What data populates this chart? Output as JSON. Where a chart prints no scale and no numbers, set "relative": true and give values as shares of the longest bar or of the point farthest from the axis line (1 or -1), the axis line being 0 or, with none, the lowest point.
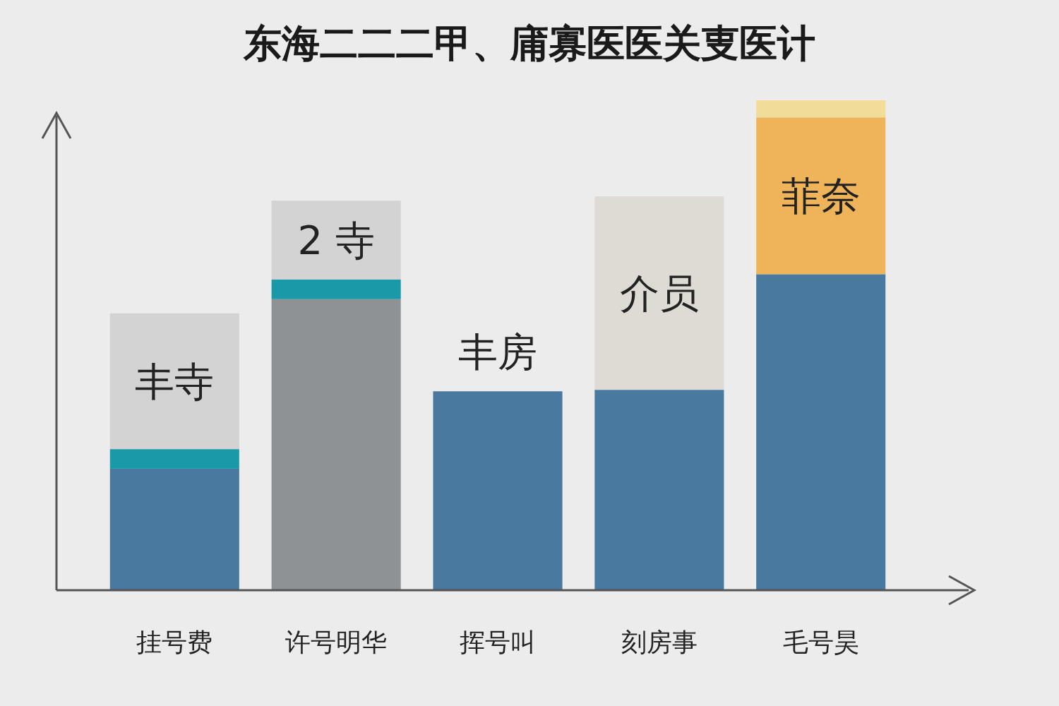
{
  "chart_data": {
    "type": "bar",
    "title": "东海二二二甲、庯寡医医关叓医计",
    "relative": true,
    "stacked": true,
    "categories": [
      "挂号费",
      "许号明华",
      "挥号叫",
      "刻房事",
      "毛号昊"
    ],
    "series": [
      {
        "color": "#4a79a0",
        "values": [
          0.248,
          null,
          0.406,
          0.409,
          0.645
        ]
      },
      {
        "color": "#8f9294",
        "values": [
          null,
          0.594,
          null,
          null,
          null
        ]
      },
      {
        "color": "#1a9aa8",
        "values": [
          0.04,
          0.04,
          null,
          null,
          null
        ]
      },
      {
        "color": "#dddbd3",
        "values": [
          null,
          null,
          null,
          0.395,
          null
        ]
      },
      {
        "color": "#efb45a",
        "values": [
          null,
          null,
          null,
          null,
          0.32
        ]
      },
      {
        "color": "#d3d3d3",
        "values": [
          0.277,
          0.161,
          null,
          null,
          null
        ]
      },
      {
        "color": "#f1dc9a",
        "values": [
          null,
          null,
          null,
          null,
          0.035
        ]
      }
    ],
    "annotations": [
      "丰寺",
      "2 寺",
      "丰房",
      "介员",
      "菲奈"
    ]
  }
}
